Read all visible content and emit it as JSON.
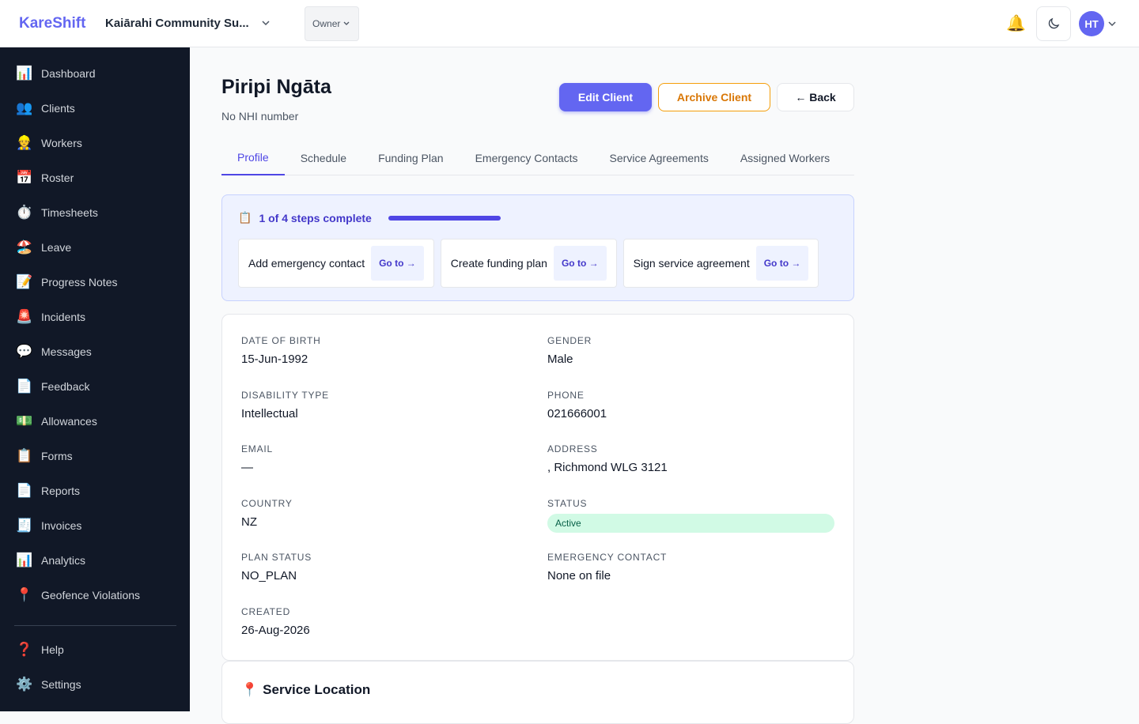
{
  "header": {
    "brand": "KareShift",
    "org": "Kaiārahi Community Su...",
    "role": "Owner",
    "bell": "🔔",
    "avatar": "HT"
  },
  "sidebar": {
    "items": [
      {
        "icon": "📊",
        "label": "Dashboard"
      },
      {
        "icon": "👥",
        "label": "Clients"
      },
      {
        "icon": "👷",
        "label": "Workers"
      },
      {
        "icon": "📅",
        "label": "Roster"
      },
      {
        "icon": "⏱️",
        "label": "Timesheets"
      },
      {
        "icon": "🏖️",
        "label": "Leave"
      },
      {
        "icon": "📝",
        "label": "Progress Notes"
      },
      {
        "icon": "🚨",
        "label": "Incidents"
      },
      {
        "icon": "💬",
        "label": "Messages"
      },
      {
        "icon": "📄",
        "label": "Feedback"
      },
      {
        "icon": "💵",
        "label": "Allowances"
      },
      {
        "icon": "📋",
        "label": "Forms"
      },
      {
        "icon": "📄",
        "label": "Reports"
      },
      {
        "icon": "🧾",
        "label": "Invoices"
      },
      {
        "icon": "📊",
        "label": "Analytics"
      },
      {
        "icon": "📍",
        "label": "Geofence Violations"
      }
    ],
    "footer": [
      {
        "icon": "❓",
        "label": "Help"
      },
      {
        "icon": "⚙️",
        "label": "Settings"
      }
    ]
  },
  "client": {
    "name": "Piripi Ngāta",
    "nhi": "No NHI number",
    "actions": [
      "Edit Client",
      "Archive Client",
      "← Back"
    ]
  },
  "tabs": [
    "Profile",
    "Schedule",
    "Funding Plan",
    "Emergency Contacts",
    "Service Agreements",
    "Assigned Workers"
  ],
  "onboarding": {
    "icon": "📋",
    "progress": "1 of 4 steps complete",
    "steps": [
      {
        "label": "Add emergency contact",
        "link": "Go to →"
      },
      {
        "label": "Create funding plan",
        "link": "Go to →"
      },
      {
        "label": "Sign service agreement",
        "link": "Go to →"
      }
    ]
  },
  "details": {
    "fields": [
      {
        "label": "DATE OF BIRTH",
        "value": "15-Jun-1992"
      },
      {
        "label": "GENDER",
        "value": "Male"
      },
      {
        "label": "DISABILITY TYPE",
        "value": "Intellectual"
      },
      {
        "label": "PHONE",
        "value": "021666001"
      },
      {
        "label": "EMAIL",
        "value": "—"
      },
      {
        "label": "ADDRESS",
        "value": ", Richmond WLG 3121"
      },
      {
        "label": "COUNTRY",
        "value": "NZ"
      },
      {
        "label": "STATUS",
        "value": "Active",
        "badge_color": "#d1fae5"
      },
      {
        "label": "PLAN STATUS",
        "value": "NO_PLAN"
      },
      {
        "label": "EMERGENCY CONTACT",
        "value": "None on file"
      },
      {
        "label": "CREATED",
        "value": "26-Aug-2026"
      }
    ]
  },
  "service_location": {
    "icon": "📍",
    "title": "Service Location"
  }
}
